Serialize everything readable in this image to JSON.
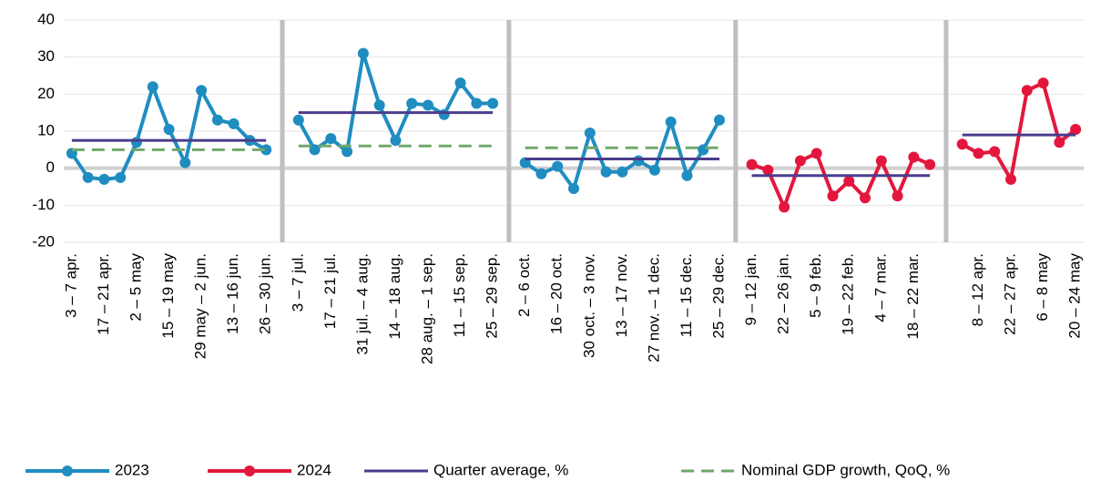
{
  "chart_data": {
    "type": "line",
    "categories": [
      "3 – 7 apr.",
      null,
      "17 – 21 apr.",
      null,
      "2 – 5 may",
      null,
      "15 – 19 may",
      null,
      "29 may – 2 jun.",
      null,
      "13 – 16 jun.",
      null,
      "26 – 30 jun.",
      null,
      "3 – 7 jul.",
      null,
      "17 – 21 jul.",
      null,
      "31 jul. – 4 aug.",
      null,
      "14 – 18 aug.",
      null,
      "28 aug. – 1 sep.",
      null,
      "11 – 15 sep.",
      null,
      "25 – 29 sep.",
      null,
      "2 – 6 oct.",
      null,
      "16 – 20 oct.",
      null,
      "30 oct. – 3 nov.",
      null,
      "13 – 17 nov.",
      null,
      "27 nov. – 1 dec.",
      null,
      "11 – 15 dec.",
      null,
      "25 – 29 dec.",
      null,
      "9 – 12 jan.",
      null,
      "22 – 26 jan.",
      null,
      "5 – 9 feb.",
      null,
      "19 – 22 feb.",
      null,
      "4 – 7 mar.",
      null,
      "18 – 22 mar.",
      null,
      null,
      null,
      "8 – 12 apr.",
      null,
      "22 – 27 apr.",
      null,
      "6 – 8 may",
      null,
      "20 – 24 may"
    ],
    "series": [
      {
        "name": "2023",
        "color": "#1f8dc0",
        "marker": true,
        "dashed": false,
        "values": [
          4,
          -2.5,
          -3,
          -2.5,
          7,
          22,
          10.5,
          1.5,
          21,
          13,
          12,
          7.5,
          5,
          null,
          13,
          5,
          8,
          4.5,
          31,
          17,
          7.5,
          17.5,
          17,
          14.5,
          23,
          17.5,
          17.5,
          null,
          1.5,
          -1.5,
          0.5,
          -5.5,
          9.5,
          -1,
          -1,
          2,
          -0.5,
          12.5,
          -2,
          5,
          13,
          null,
          null,
          null,
          null,
          null,
          null,
          null,
          null,
          null,
          null,
          null,
          null,
          null,
          null,
          null,
          null,
          null,
          null,
          null,
          null,
          null,
          null
        ]
      },
      {
        "name": "2024",
        "color": "#e3173e",
        "marker": true,
        "dashed": false,
        "values": [
          null,
          null,
          null,
          null,
          null,
          null,
          null,
          null,
          null,
          null,
          null,
          null,
          null,
          null,
          null,
          null,
          null,
          null,
          null,
          null,
          null,
          null,
          null,
          null,
          null,
          null,
          null,
          null,
          null,
          null,
          null,
          null,
          null,
          null,
          null,
          null,
          null,
          null,
          null,
          null,
          null,
          null,
          1,
          -0.5,
          -10.5,
          2,
          4,
          -7.5,
          -3.5,
          -8,
          2,
          -7.5,
          3,
          1,
          null,
          6.5,
          4,
          4.5,
          -3,
          21,
          23,
          7,
          10.5
        ]
      },
      {
        "name": "Quarter average, %",
        "color": "#4b3c8c",
        "marker": false,
        "dashed": false,
        "values": [
          7.5,
          7.5,
          7.5,
          7.5,
          7.5,
          7.5,
          7.5,
          7.5,
          7.5,
          7.5,
          7.5,
          7.5,
          7.5,
          null,
          15,
          15,
          15,
          15,
          15,
          15,
          15,
          15,
          15,
          15,
          15,
          15,
          15,
          null,
          2.5,
          2.5,
          2.5,
          2.5,
          2.5,
          2.5,
          2.5,
          2.5,
          2.5,
          2.5,
          2.5,
          2.5,
          2.5,
          null,
          -2,
          -2,
          -2,
          -2,
          -2,
          -2,
          -2,
          -2,
          -2,
          -2,
          -2,
          -2,
          null,
          9,
          9,
          9,
          9,
          9,
          9,
          9,
          9
        ]
      },
      {
        "name": "Nominal GDP growth, QoQ, %",
        "color": "#6fa86a",
        "marker": false,
        "dashed": true,
        "values": [
          5,
          5,
          5,
          5,
          5,
          5,
          5,
          5,
          5,
          5,
          5,
          5,
          5,
          null,
          6,
          6,
          6,
          6,
          6,
          6,
          6,
          6,
          6,
          6,
          6,
          6,
          6,
          null,
          5.5,
          5.5,
          5.5,
          5.5,
          5.5,
          5.5,
          5.5,
          5.5,
          5.5,
          5.5,
          5.5,
          5.5,
          5.5,
          null,
          null,
          null,
          null,
          null,
          null,
          null,
          null,
          null,
          null,
          null,
          null,
          null,
          null,
          null,
          null,
          null,
          null,
          null,
          null,
          null,
          null
        ]
      }
    ],
    "ylim": [
      -20,
      40
    ],
    "yticks": [
      -20,
      -10,
      0,
      10,
      20,
      30,
      40
    ],
    "grid": true,
    "legend": "bottom"
  }
}
